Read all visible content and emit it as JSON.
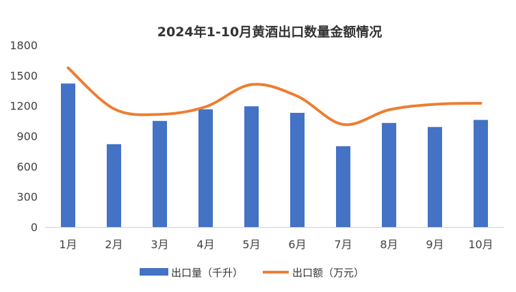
{
  "chart_data": {
    "type": "bar",
    "title": "2024年1-10月黄酒出口数量金额情况",
    "categories": [
      "1月",
      "2月",
      "3月",
      "4月",
      "5月",
      "6月",
      "7月",
      "8月",
      "9月",
      "10月"
    ],
    "ylim": [
      0,
      1800
    ],
    "yticks": [
      0,
      300,
      600,
      900,
      1200,
      1500,
      1800
    ],
    "grid": false,
    "legend_position": "bottom",
    "series": [
      {
        "name": "出口量（千升）",
        "type": "bar",
        "color": "#4472C4",
        "values": [
          1420,
          820,
          1050,
          1165,
          1195,
          1130,
          800,
          1030,
          990,
          1060
        ]
      },
      {
        "name": "出口额（万元）",
        "type": "line",
        "smooth": true,
        "color": "#ED7D31",
        "values": [
          1575,
          1170,
          1115,
          1190,
          1410,
          1295,
          1015,
          1160,
          1215,
          1225
        ]
      }
    ]
  }
}
